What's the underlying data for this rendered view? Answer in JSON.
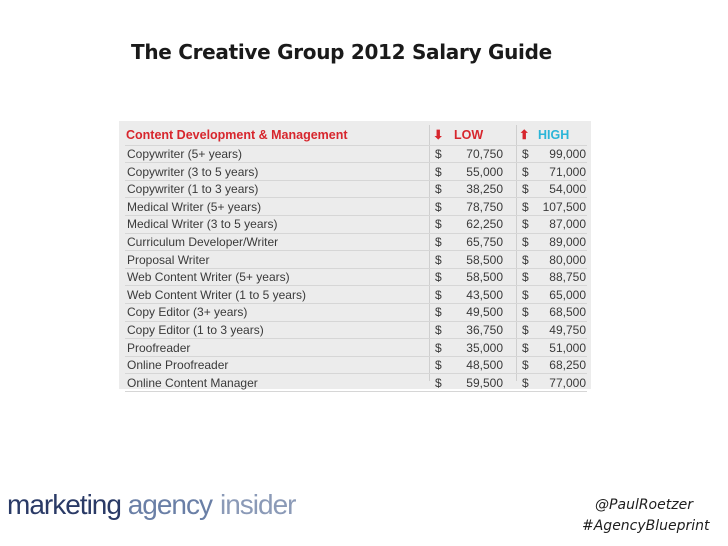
{
  "title": "The Creative Group 2012 Salary Guide",
  "table": {
    "header": {
      "title": "Content Development & Management",
      "low_arrow": "⬇",
      "low_label": "LOW",
      "high_arrow": "⬆",
      "high_label": "HIGH"
    },
    "currency": "$",
    "rows": [
      {
        "job": "Copywriter (5+ years)",
        "low": "70,750",
        "high": "99,000"
      },
      {
        "job": "Copywriter (3 to 5 years)",
        "low": "55,000",
        "high": "71,000"
      },
      {
        "job": "Copywriter (1 to 3 years)",
        "low": "38,250",
        "high": "54,000"
      },
      {
        "job": "Medical Writer (5+ years)",
        "low": "78,750",
        "high": "107,500"
      },
      {
        "job": "Medical Writer (3 to 5 years)",
        "low": "62,250",
        "high": "87,000"
      },
      {
        "job": "Curriculum Developer/Writer",
        "low": "65,750",
        "high": "89,000"
      },
      {
        "job": "Proposal Writer",
        "low": "58,500",
        "high": "80,000"
      },
      {
        "job": "Web Content Writer (5+ years)",
        "low": "58,500",
        "high": "88,750"
      },
      {
        "job": "Web Content Writer (1 to 5 years)",
        "low": "43,500",
        "high": "65,000"
      },
      {
        "job": "Copy Editor (3+ years)",
        "low": "49,500",
        "high": "68,500"
      },
      {
        "job": "Copy Editor (1 to 3 years)",
        "low": "36,750",
        "high": "49,750"
      },
      {
        "job": "Proofreader",
        "low": "35,000",
        "high": "51,000"
      },
      {
        "job": "Online Proofreader",
        "low": "48,500",
        "high": "68,250"
      },
      {
        "job": "Online Content Manager",
        "low": "59,500",
        "high": "77,000"
      }
    ]
  },
  "logo": {
    "word1": "marketing",
    "word2": "agency",
    "word3": "insider"
  },
  "footer": {
    "handle": "@PaulRoetzer",
    "hashtag": "#AgencyBlueprint"
  },
  "colors": {
    "low_accent": "#d7262d",
    "high_accent": "#2bb5d8",
    "logo_dark": "#2a3a66"
  }
}
